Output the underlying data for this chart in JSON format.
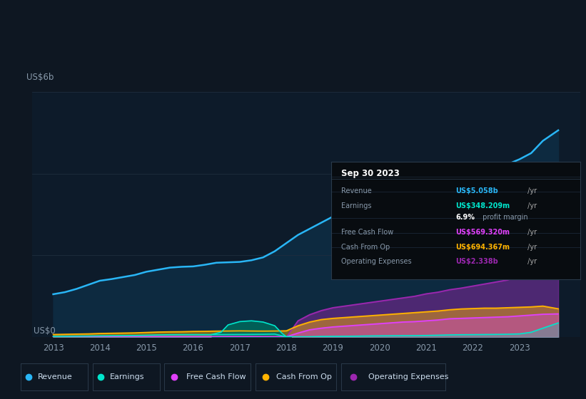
{
  "bg_color": "#0e1722",
  "plot_bg_color": "#0d1b2a",
  "grid_color": "#1e2d3e",
  "title_date": "Sep 30 2023",
  "revenue_color": "#29b6f6",
  "earnings_color": "#00e5cc",
  "fcf_color": "#e040fb",
  "cashop_color": "#ffb300",
  "opex_color": "#9c27b0",
  "ylabel": "US$6b",
  "y0label": "US$0",
  "ylim": [
    0,
    6.0
  ],
  "xticks": [
    2013,
    2014,
    2015,
    2016,
    2017,
    2018,
    2019,
    2020,
    2021,
    2022,
    2023
  ],
  "legend_items": [
    {
      "label": "Revenue",
      "color": "#29b6f6"
    },
    {
      "label": "Earnings",
      "color": "#00e5cc"
    },
    {
      "label": "Free Cash Flow",
      "color": "#e040fb"
    },
    {
      "label": "Cash From Op",
      "color": "#ffb300"
    },
    {
      "label": "Operating Expenses",
      "color": "#9c27b0"
    }
  ],
  "table_rows": [
    {
      "label": "Revenue",
      "value": "US$5.058b",
      "unit": " /yr",
      "color": "#29b6f6"
    },
    {
      "label": "Earnings",
      "value": "US$348.209m",
      "unit": " /yr",
      "color": "#00e5cc"
    },
    {
      "label": "",
      "value": "6.9%",
      "unit": " profit margin",
      "color": "#ffffff"
    },
    {
      "label": "Free Cash Flow",
      "value": "US$569.320m",
      "unit": " /yr",
      "color": "#e040fb"
    },
    {
      "label": "Cash From Op",
      "value": "US$694.367m",
      "unit": " /yr",
      "color": "#ffb300"
    },
    {
      "label": "Operating Expenses",
      "value": "US$2.338b",
      "unit": " /yr",
      "color": "#9c27b0"
    }
  ],
  "years": [
    2013.0,
    2013.25,
    2013.5,
    2013.75,
    2014.0,
    2014.25,
    2014.5,
    2014.75,
    2015.0,
    2015.25,
    2015.5,
    2015.75,
    2016.0,
    2016.25,
    2016.5,
    2016.75,
    2017.0,
    2017.25,
    2017.5,
    2017.75,
    2018.0,
    2018.25,
    2018.5,
    2018.75,
    2019.0,
    2019.25,
    2019.5,
    2019.75,
    2020.0,
    2020.25,
    2020.5,
    2020.75,
    2021.0,
    2021.25,
    2021.5,
    2021.75,
    2022.0,
    2022.25,
    2022.5,
    2022.75,
    2023.0,
    2023.25,
    2023.5,
    2023.83
  ],
  "revenue": [
    1.05,
    1.1,
    1.18,
    1.28,
    1.38,
    1.42,
    1.47,
    1.52,
    1.6,
    1.65,
    1.7,
    1.72,
    1.73,
    1.77,
    1.82,
    1.83,
    1.84,
    1.88,
    1.95,
    2.1,
    2.3,
    2.5,
    2.65,
    2.8,
    2.95,
    3.05,
    3.15,
    3.25,
    3.35,
    3.42,
    3.48,
    3.53,
    3.6,
    3.7,
    3.85,
    3.97,
    4.05,
    4.12,
    4.18,
    4.23,
    4.35,
    4.5,
    4.8,
    5.058
  ],
  "earnings": [
    0.02,
    0.022,
    0.025,
    0.028,
    0.032,
    0.035,
    0.038,
    0.042,
    0.048,
    0.055,
    0.06,
    0.062,
    0.063,
    0.063,
    0.063,
    0.065,
    0.066,
    0.068,
    0.07,
    0.075,
    0.01,
    0.01,
    0.012,
    0.018,
    0.02,
    0.022,
    0.025,
    0.03,
    0.033,
    0.035,
    0.037,
    0.038,
    0.042,
    0.048,
    0.055,
    0.06,
    0.062,
    0.065,
    0.068,
    0.072,
    0.08,
    0.12,
    0.22,
    0.348
  ],
  "free_cash_flow": [
    0.005,
    0.005,
    0.006,
    0.007,
    0.008,
    0.009,
    0.01,
    0.011,
    0.012,
    0.013,
    0.013,
    0.013,
    0.013,
    0.013,
    0.013,
    0.014,
    0.014,
    0.014,
    0.013,
    0.012,
    0.01,
    0.1,
    0.18,
    0.22,
    0.25,
    0.27,
    0.29,
    0.31,
    0.33,
    0.35,
    0.37,
    0.38,
    0.4,
    0.42,
    0.45,
    0.46,
    0.47,
    0.48,
    0.49,
    0.5,
    0.52,
    0.54,
    0.56,
    0.569
  ],
  "cash_from_op": [
    0.065,
    0.07,
    0.075,
    0.08,
    0.09,
    0.095,
    0.1,
    0.105,
    0.115,
    0.125,
    0.13,
    0.133,
    0.14,
    0.143,
    0.148,
    0.15,
    0.153,
    0.15,
    0.148,
    0.15,
    0.155,
    0.28,
    0.37,
    0.43,
    0.46,
    0.48,
    0.5,
    0.52,
    0.54,
    0.56,
    0.58,
    0.6,
    0.62,
    0.64,
    0.67,
    0.69,
    0.7,
    0.71,
    0.71,
    0.72,
    0.73,
    0.74,
    0.76,
    0.694
  ],
  "op_expenses": [
    0.0,
    0.0,
    0.0,
    0.0,
    0.0,
    0.0,
    0.0,
    0.0,
    0.0,
    0.0,
    0.0,
    0.0,
    0.0,
    0.0,
    0.0,
    0.0,
    0.0,
    0.0,
    0.0,
    0.0,
    0.0,
    0.4,
    0.55,
    0.65,
    0.72,
    0.76,
    0.8,
    0.84,
    0.88,
    0.92,
    0.96,
    1.0,
    1.06,
    1.1,
    1.16,
    1.2,
    1.25,
    1.3,
    1.35,
    1.4,
    1.55,
    1.8,
    2.1,
    2.338
  ]
}
